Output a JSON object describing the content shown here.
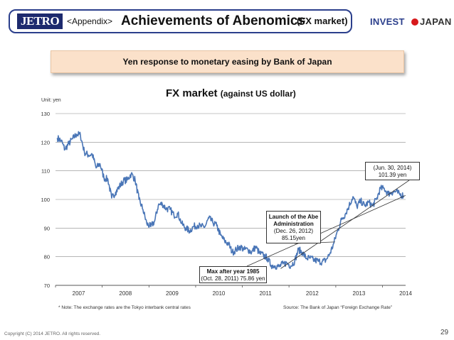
{
  "header": {
    "logo_text": "JETRO",
    "title_prefix": "<Appendix>",
    "title_main": "Achievements of Abenomics",
    "title_sub": "(FX market)",
    "brand_logo": {
      "word1": "INVEST",
      "word2": "JAPAN"
    }
  },
  "banner": {
    "text": "Yen response to monetary easing by Bank of Japan"
  },
  "chart_unit": "Unit: yen",
  "notes": {
    "left": "* Note: The exchange rates are the Tokyo interbank central rates",
    "right": "Source: The Bank of Japan “Foreign Exchange Rate”"
  },
  "callouts": {
    "jun": {
      "line1": "(Jun. 30, 2014)",
      "line2": "101.39 yen"
    },
    "abe": {
      "title1": "Launch of the Abe",
      "title2": "Administration",
      "line3": "(Dec. 26, 2012)",
      "line4": "85.15yen"
    },
    "max": {
      "title": "Max after year 1985",
      "line2": "(Oct. 28, 2011) 75.86 yen"
    }
  },
  "footer": {
    "copyright": "Copyright (C) 2014 JETRO. All rights reserved.",
    "page": "29"
  },
  "colors": {
    "line": "#4a76b7",
    "title_border": "#2b3f8c",
    "banner_bg": "#fbe1ca",
    "grid": "#8a8a8a"
  },
  "chart_data": {
    "type": "line",
    "title": "FX market",
    "subtitle": "(against US dollar)",
    "ylabel": "Unit: yen",
    "ylim": [
      70,
      130
    ],
    "yticks": [
      70,
      80,
      90,
      100,
      110,
      120,
      130
    ],
    "xlim": [
      "2007-01",
      "2014-07"
    ],
    "xticks": [
      "2007",
      "2008",
      "2009",
      "2010",
      "2011",
      "2012",
      "2013",
      "2014"
    ],
    "grid": "horizontal",
    "series": [
      {
        "x": [
          "2007-01",
          "2007-02",
          "2007-03",
          "2007-04",
          "2007-05",
          "2007-06",
          "2007-07",
          "2007-08",
          "2007-09",
          "2007-10",
          "2007-11",
          "2007-12",
          "2008-01",
          "2008-02",
          "2008-03",
          "2008-04",
          "2008-05",
          "2008-06",
          "2008-07",
          "2008-08",
          "2008-09",
          "2008-10",
          "2008-11",
          "2008-12",
          "2009-01",
          "2009-02",
          "2009-03",
          "2009-04",
          "2009-05",
          "2009-06",
          "2009-07",
          "2009-08",
          "2009-09",
          "2009-10",
          "2009-11",
          "2009-12",
          "2010-01",
          "2010-02",
          "2010-03",
          "2010-04",
          "2010-05",
          "2010-06",
          "2010-07",
          "2010-08",
          "2010-09",
          "2010-10",
          "2010-11",
          "2010-12",
          "2011-01",
          "2011-02",
          "2011-03",
          "2011-04",
          "2011-05",
          "2011-06",
          "2011-07",
          "2011-08",
          "2011-09",
          "2011-10",
          "2011-11",
          "2011-12",
          "2012-01",
          "2012-02",
          "2012-03",
          "2012-04",
          "2012-05",
          "2012-06",
          "2012-07",
          "2012-08",
          "2012-09",
          "2012-10",
          "2012-11",
          "2012-12",
          "2013-01",
          "2013-02",
          "2013-03",
          "2013-04",
          "2013-05",
          "2013-06",
          "2013-07",
          "2013-08",
          "2013-09",
          "2013-10",
          "2013-11",
          "2013-12",
          "2014-01",
          "2014-02",
          "2014-03",
          "2014-04",
          "2014-05",
          "2014-06"
        ],
        "values": [
          121.5,
          120.5,
          117.5,
          119.5,
          121.2,
          122.8,
          122.5,
          116.5,
          115.5,
          115.8,
          111.0,
          112.5,
          107.5,
          107.0,
          100.5,
          102.6,
          104.5,
          106.5,
          106.8,
          109.0,
          106.8,
          100.0,
          96.5,
          91.5,
          90.5,
          92.5,
          98.0,
          98.5,
          96.8,
          96.5,
          94.5,
          95.0,
          91.5,
          90.0,
          89.0,
          90.5,
          91.0,
          90.5,
          90.5,
          93.5,
          92.0,
          90.8,
          87.5,
          85.5,
          84.5,
          81.5,
          82.5,
          83.5,
          82.5,
          82.5,
          81.5,
          83.5,
          81.2,
          80.5,
          79.5,
          77.0,
          76.8,
          76.5,
          77.5,
          77.8,
          76.8,
          78.5,
          82.5,
          81.5,
          79.5,
          79.5,
          78.8,
          78.5,
          78.2,
          78.8,
          81.0,
          84.5,
          89.0,
          93.0,
          94.8,
          97.8,
          101.0,
          97.5,
          99.5,
          97.8,
          99.0,
          97.8,
          100.0,
          103.8,
          103.8,
          102.0,
          102.5,
          102.8,
          101.8,
          101.4
        ]
      }
    ],
    "annotations": [
      {
        "x": "2011-10-28",
        "y": 75.86,
        "text": "Max after year 1985 (Oct. 28, 2011) 75.86 yen"
      },
      {
        "x": "2012-12-26",
        "y": 85.15,
        "text": "Launch of the Abe Administration (Dec. 26, 2012) 85.15yen"
      },
      {
        "x": "2014-06-30",
        "y": 101.39,
        "text": "(Jun. 30, 2014) 101.39 yen"
      }
    ]
  }
}
